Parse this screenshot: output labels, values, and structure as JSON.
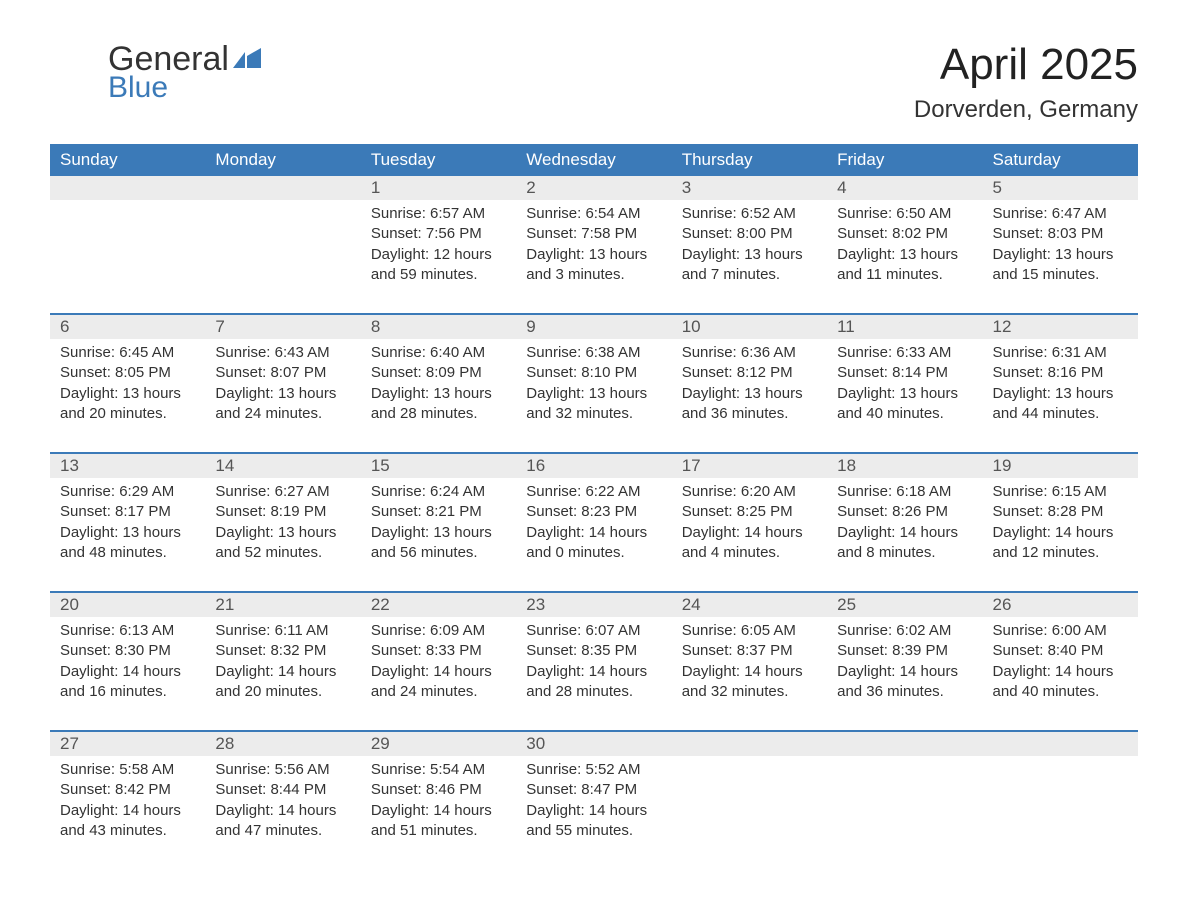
{
  "logo": {
    "text1": "General",
    "text2": "Blue",
    "flag_color": "#3b7ab8"
  },
  "title": "April 2025",
  "location": "Dorverden, Germany",
  "accent_color": "#3b7ab8",
  "header_bg": "#3b7ab8",
  "header_text_color": "#ffffff",
  "daynum_bg": "#ececec",
  "daynum_color": "#555555",
  "body_text_color": "#333333",
  "background_color": "#ffffff",
  "font_family": "Arial",
  "title_fontsize": 44,
  "location_fontsize": 24,
  "weekday_fontsize": 17,
  "daynum_fontsize": 17,
  "content_fontsize": 15,
  "weekdays": [
    "Sunday",
    "Monday",
    "Tuesday",
    "Wednesday",
    "Thursday",
    "Friday",
    "Saturday"
  ],
  "labels": {
    "sunrise": "Sunrise:",
    "sunset": "Sunset:",
    "daylight": "Daylight:"
  },
  "weeks": [
    [
      null,
      null,
      {
        "day": "1",
        "sunrise": "6:57 AM",
        "sunset": "7:56 PM",
        "daylight1": "12 hours",
        "daylight2": "and 59 minutes."
      },
      {
        "day": "2",
        "sunrise": "6:54 AM",
        "sunset": "7:58 PM",
        "daylight1": "13 hours",
        "daylight2": "and 3 minutes."
      },
      {
        "day": "3",
        "sunrise": "6:52 AM",
        "sunset": "8:00 PM",
        "daylight1": "13 hours",
        "daylight2": "and 7 minutes."
      },
      {
        "day": "4",
        "sunrise": "6:50 AM",
        "sunset": "8:02 PM",
        "daylight1": "13 hours",
        "daylight2": "and 11 minutes."
      },
      {
        "day": "5",
        "sunrise": "6:47 AM",
        "sunset": "8:03 PM",
        "daylight1": "13 hours",
        "daylight2": "and 15 minutes."
      }
    ],
    [
      {
        "day": "6",
        "sunrise": "6:45 AM",
        "sunset": "8:05 PM",
        "daylight1": "13 hours",
        "daylight2": "and 20 minutes."
      },
      {
        "day": "7",
        "sunrise": "6:43 AM",
        "sunset": "8:07 PM",
        "daylight1": "13 hours",
        "daylight2": "and 24 minutes."
      },
      {
        "day": "8",
        "sunrise": "6:40 AM",
        "sunset": "8:09 PM",
        "daylight1": "13 hours",
        "daylight2": "and 28 minutes."
      },
      {
        "day": "9",
        "sunrise": "6:38 AM",
        "sunset": "8:10 PM",
        "daylight1": "13 hours",
        "daylight2": "and 32 minutes."
      },
      {
        "day": "10",
        "sunrise": "6:36 AM",
        "sunset": "8:12 PM",
        "daylight1": "13 hours",
        "daylight2": "and 36 minutes."
      },
      {
        "day": "11",
        "sunrise": "6:33 AM",
        "sunset": "8:14 PM",
        "daylight1": "13 hours",
        "daylight2": "and 40 minutes."
      },
      {
        "day": "12",
        "sunrise": "6:31 AM",
        "sunset": "8:16 PM",
        "daylight1": "13 hours",
        "daylight2": "and 44 minutes."
      }
    ],
    [
      {
        "day": "13",
        "sunrise": "6:29 AM",
        "sunset": "8:17 PM",
        "daylight1": "13 hours",
        "daylight2": "and 48 minutes."
      },
      {
        "day": "14",
        "sunrise": "6:27 AM",
        "sunset": "8:19 PM",
        "daylight1": "13 hours",
        "daylight2": "and 52 minutes."
      },
      {
        "day": "15",
        "sunrise": "6:24 AM",
        "sunset": "8:21 PM",
        "daylight1": "13 hours",
        "daylight2": "and 56 minutes."
      },
      {
        "day": "16",
        "sunrise": "6:22 AM",
        "sunset": "8:23 PM",
        "daylight1": "14 hours",
        "daylight2": "and 0 minutes."
      },
      {
        "day": "17",
        "sunrise": "6:20 AM",
        "sunset": "8:25 PM",
        "daylight1": "14 hours",
        "daylight2": "and 4 minutes."
      },
      {
        "day": "18",
        "sunrise": "6:18 AM",
        "sunset": "8:26 PM",
        "daylight1": "14 hours",
        "daylight2": "and 8 minutes."
      },
      {
        "day": "19",
        "sunrise": "6:15 AM",
        "sunset": "8:28 PM",
        "daylight1": "14 hours",
        "daylight2": "and 12 minutes."
      }
    ],
    [
      {
        "day": "20",
        "sunrise": "6:13 AM",
        "sunset": "8:30 PM",
        "daylight1": "14 hours",
        "daylight2": "and 16 minutes."
      },
      {
        "day": "21",
        "sunrise": "6:11 AM",
        "sunset": "8:32 PM",
        "daylight1": "14 hours",
        "daylight2": "and 20 minutes."
      },
      {
        "day": "22",
        "sunrise": "6:09 AM",
        "sunset": "8:33 PM",
        "daylight1": "14 hours",
        "daylight2": "and 24 minutes."
      },
      {
        "day": "23",
        "sunrise": "6:07 AM",
        "sunset": "8:35 PM",
        "daylight1": "14 hours",
        "daylight2": "and 28 minutes."
      },
      {
        "day": "24",
        "sunrise": "6:05 AM",
        "sunset": "8:37 PM",
        "daylight1": "14 hours",
        "daylight2": "and 32 minutes."
      },
      {
        "day": "25",
        "sunrise": "6:02 AM",
        "sunset": "8:39 PM",
        "daylight1": "14 hours",
        "daylight2": "and 36 minutes."
      },
      {
        "day": "26",
        "sunrise": "6:00 AM",
        "sunset": "8:40 PM",
        "daylight1": "14 hours",
        "daylight2": "and 40 minutes."
      }
    ],
    [
      {
        "day": "27",
        "sunrise": "5:58 AM",
        "sunset": "8:42 PM",
        "daylight1": "14 hours",
        "daylight2": "and 43 minutes."
      },
      {
        "day": "28",
        "sunrise": "5:56 AM",
        "sunset": "8:44 PM",
        "daylight1": "14 hours",
        "daylight2": "and 47 minutes."
      },
      {
        "day": "29",
        "sunrise": "5:54 AM",
        "sunset": "8:46 PM",
        "daylight1": "14 hours",
        "daylight2": "and 51 minutes."
      },
      {
        "day": "30",
        "sunrise": "5:52 AM",
        "sunset": "8:47 PM",
        "daylight1": "14 hours",
        "daylight2": "and 55 minutes."
      },
      null,
      null,
      null
    ]
  ]
}
